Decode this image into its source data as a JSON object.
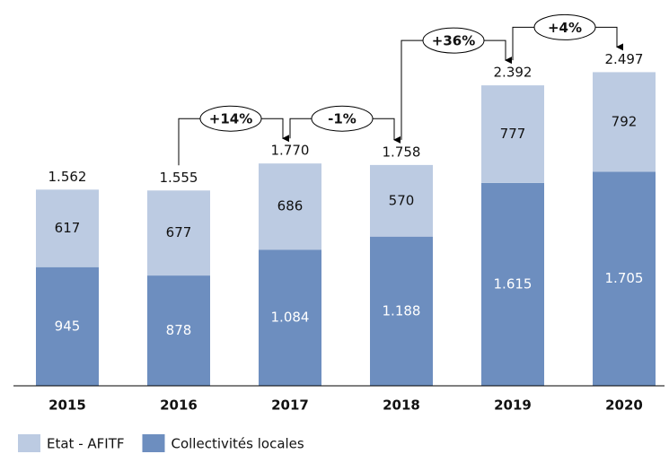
{
  "chart_data": {
    "type": "stacked_bar",
    "categories": [
      "2015",
      "2016",
      "2017",
      "2018",
      "2019",
      "2020"
    ],
    "series": [
      {
        "name": "Collectivités locales",
        "color": "#6d8ebf",
        "values": [
          945,
          878,
          1084,
          1188,
          1615,
          1705
        ],
        "value_labels": [
          "945",
          "878",
          "1.084",
          "1.188",
          "1.615",
          "1.705"
        ]
      },
      {
        "name": "Etat - AFITF",
        "color": "#bccbe2",
        "values": [
          617,
          677,
          686,
          570,
          777,
          792
        ]
      }
    ],
    "totals": {
      "values": [
        1562,
        1555,
        1770,
        1758,
        2392,
        2497
      ],
      "value_labels": [
        "1.562",
        "1.555",
        "1.770",
        "1.758",
        "2.392",
        "2.497"
      ]
    },
    "annotations": [
      "+14%",
      "-1%",
      "+36%",
      "+4%"
    ],
    "ylim": [
      0,
      2500
    ],
    "legend": "bottom-left"
  }
}
